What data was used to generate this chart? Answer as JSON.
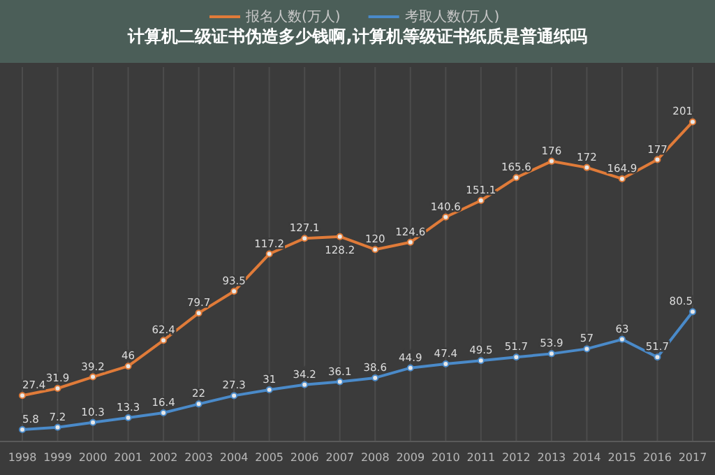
{
  "chart_data": {
    "type": "line",
    "title": "计算机二级证书伪造多少钱啊,计算机等级证书纸质是普通纸吗",
    "categories": [
      "1998",
      "1999",
      "2000",
      "2001",
      "2002",
      "2003",
      "2004",
      "2005",
      "2006",
      "2007",
      "2008",
      "2009",
      "2010",
      "2011",
      "2012",
      "2013",
      "2014",
      "2015",
      "2016",
      "2017"
    ],
    "series": [
      {
        "name": "报名人数(万人)",
        "color": "#e07b39",
        "values": [
          27.4,
          31.9,
          39.2,
          46,
          62.4,
          79.7,
          93.5,
          117.2,
          127.1,
          128.2,
          120,
          124.6,
          140.6,
          151.1,
          165.6,
          176,
          172,
          164.9,
          177,
          201
        ]
      },
      {
        "name": "考取人数(万人)",
        "color": "#4a8ac9",
        "values": [
          5.8,
          7.2,
          10.3,
          13.3,
          16.4,
          22,
          27.3,
          31,
          34.2,
          36.1,
          38.6,
          44.9,
          47.4,
          49.5,
          51.7,
          53.9,
          57,
          63,
          51.7,
          80.5
        ]
      }
    ],
    "data_labels": true,
    "marker": "circle",
    "line_style": "solid",
    "grid": "x",
    "legend": "top"
  }
}
